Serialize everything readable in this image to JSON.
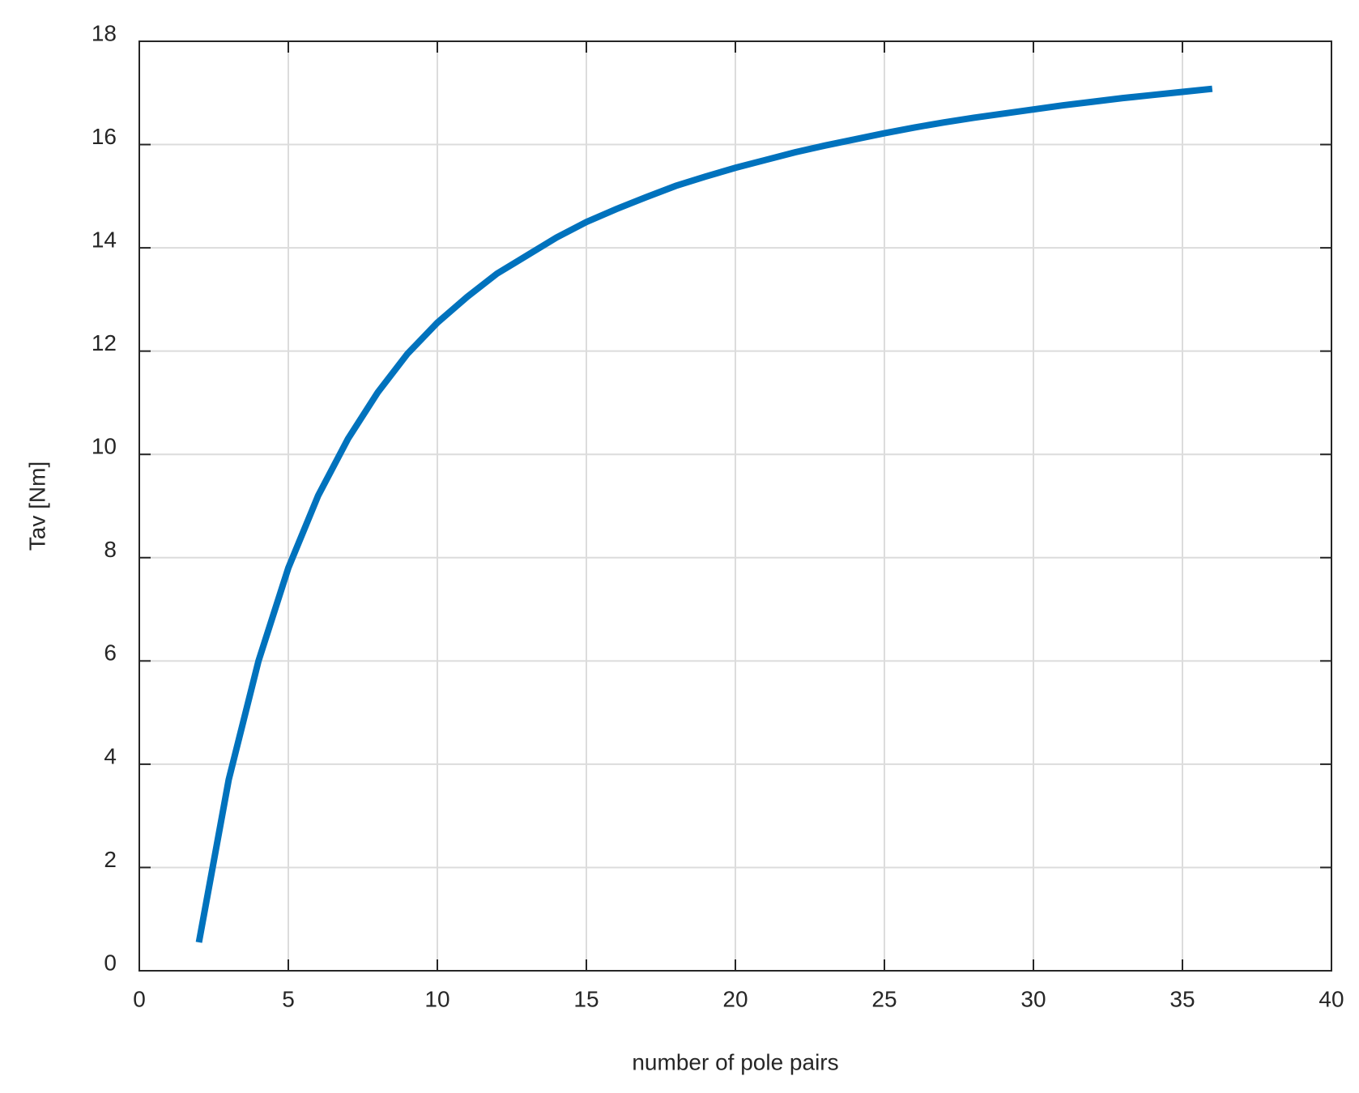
{
  "chart_data": {
    "type": "line",
    "x_label": "number of pole pairs",
    "y_label": "Tav [Nm]",
    "x": [
      2,
      3,
      4,
      5,
      6,
      7,
      8,
      9,
      10,
      11,
      12,
      13,
      14,
      15,
      16,
      17,
      18,
      19,
      20,
      21,
      22,
      23,
      24,
      25,
      26,
      27,
      28,
      29,
      30,
      31,
      32,
      33,
      34,
      35,
      36
    ],
    "series": [
      {
        "name": "Tav",
        "color": "#0072bd",
        "values": [
          0.55,
          3.7,
          6.0,
          7.8,
          9.2,
          10.3,
          11.2,
          11.95,
          12.55,
          13.05,
          13.5,
          13.85,
          14.2,
          14.5,
          14.75,
          14.98,
          15.2,
          15.38,
          15.55,
          15.7,
          15.85,
          15.98,
          16.1,
          16.22,
          16.33,
          16.43,
          16.52,
          16.6,
          16.68,
          16.76,
          16.83,
          16.9,
          16.96,
          17.02,
          17.08
        ]
      }
    ],
    "xlim": [
      0,
      40
    ],
    "xticks": [
      0,
      5,
      10,
      15,
      20,
      25,
      30,
      35,
      40
    ],
    "ylim": [
      0,
      18
    ],
    "yticks": [
      0,
      2,
      4,
      6,
      8,
      10,
      12,
      14,
      16,
      18
    ],
    "grid": true
  }
}
